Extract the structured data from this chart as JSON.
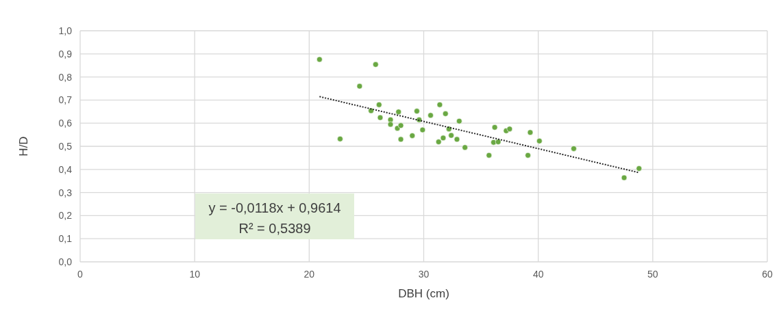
{
  "chart_data": {
    "type": "scatter",
    "xlabel": "DBH (cm)",
    "ylabel": "H/D",
    "xlim": [
      0,
      60
    ],
    "xticks": [
      0,
      10,
      20,
      30,
      40,
      50,
      60
    ],
    "ylim": [
      0,
      1
    ],
    "yticks": [
      {
        "value": 0,
        "label": "0,0"
      },
      {
        "value": 0.1,
        "label": "0,1"
      },
      {
        "value": 0.2,
        "label": "0,2"
      },
      {
        "value": 0.3,
        "label": "0,3"
      },
      {
        "value": 0.4,
        "label": "0,4"
      },
      {
        "value": 0.5,
        "label": "0,5"
      },
      {
        "value": 0.6,
        "label": "0,6"
      },
      {
        "value": 0.7,
        "label": "0,7"
      },
      {
        "value": 0.8,
        "label": "0,8"
      },
      {
        "value": 0.9,
        "label": "0,9"
      },
      {
        "value": 1,
        "label": "1,0"
      }
    ],
    "grid": true,
    "marker": "circle",
    "series": [
      {
        "color": "#6aa843",
        "x": [
          20.9,
          25.8,
          24.4,
          26.1,
          25.4,
          26.2,
          22.7,
          27.1,
          27.1,
          27.8,
          27.7,
          28.0,
          28.0,
          29.0,
          29.4,
          29.6,
          29.9,
          30.6,
          31.4,
          31.9,
          31.3,
          31.7,
          32.2,
          32.4,
          33.1,
          32.9,
          33.6,
          35.7,
          36.2,
          36.1,
          36.5,
          37.2,
          37.5,
          39.3,
          39.1,
          40.1,
          43.1,
          47.5,
          48.8
        ],
        "values": [
          0.876,
          0.854,
          0.76,
          0.68,
          0.654,
          0.624,
          0.532,
          0.615,
          0.595,
          0.649,
          0.578,
          0.59,
          0.53,
          0.546,
          0.652,
          0.615,
          0.571,
          0.634,
          0.68,
          0.641,
          0.519,
          0.536,
          0.575,
          0.547,
          0.609,
          0.53,
          0.495,
          0.461,
          0.582,
          0.517,
          0.519,
          0.567,
          0.575,
          0.56,
          0.461,
          0.523,
          0.49,
          0.364,
          0.404
        ]
      },
      {
        "type": "line",
        "color": "#262626",
        "line_style": "dotted",
        "marker": "none",
        "x": [
          20.9,
          48.8
        ],
        "values": [
          0.715,
          0.386
        ]
      }
    ],
    "annotations": [
      "y = -0,0118x + 0,9614",
      "R² = 0,5389"
    ]
  }
}
